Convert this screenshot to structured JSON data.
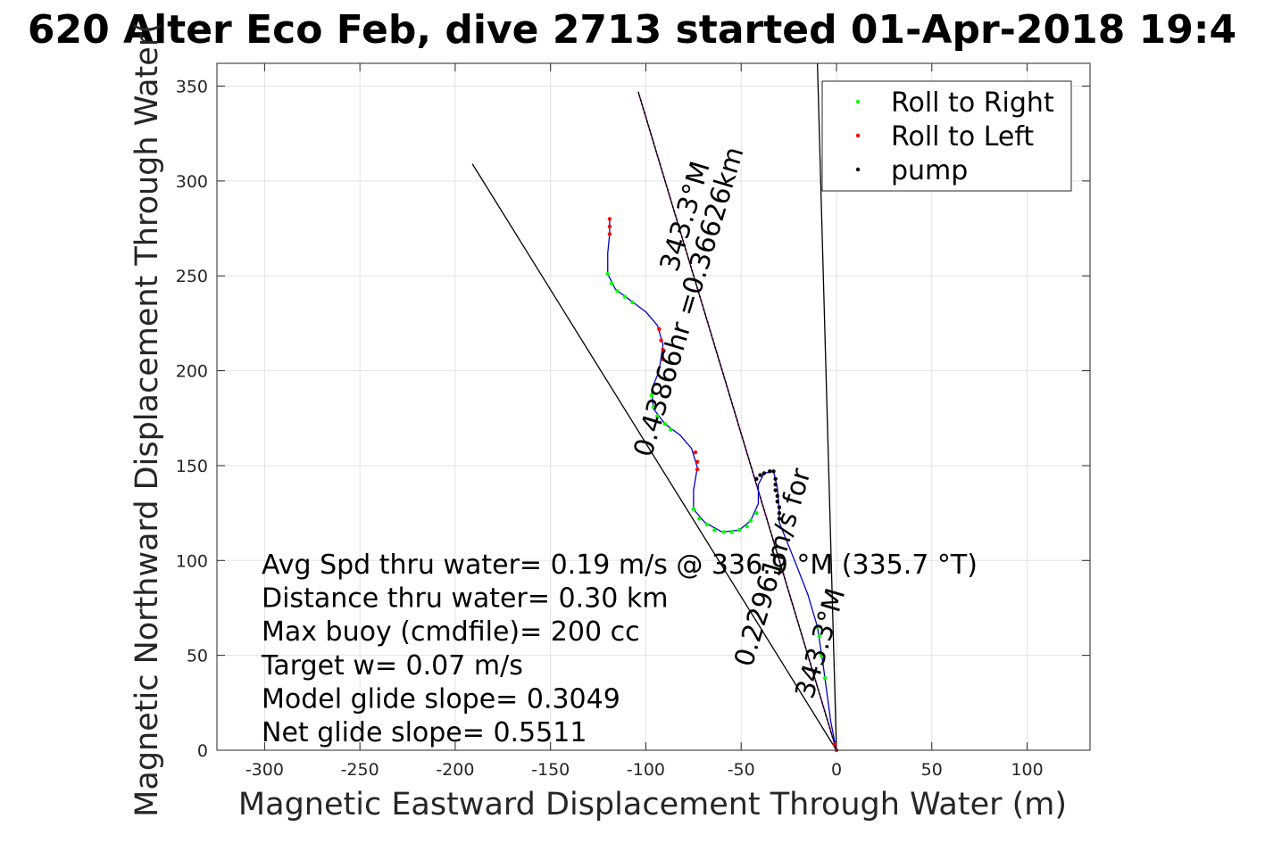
{
  "chart_data": {
    "type": "line",
    "title": "620 Alter Eco Feb, dive 2713 started 01-Apr-2018 19:4",
    "xlabel": "Magnetic Eastward Displacement Through Water (m)",
    "ylabel": "Magnetic Northward Displacement Through Water(",
    "xlim": [
      -325,
      133
    ],
    "ylim": [
      0,
      362
    ],
    "xticks": [
      -300,
      -250,
      -200,
      -150,
      -100,
      -50,
      0,
      50,
      100
    ],
    "yticks": [
      0,
      50,
      100,
      150,
      200,
      250,
      300,
      350
    ],
    "grid": true,
    "legend_position": "top-right",
    "legend": [
      {
        "label": "Roll to Right",
        "color": "#00ff00"
      },
      {
        "label": "Roll to Left",
        "color": "#ff0000"
      },
      {
        "label": "pump",
        "color": "#000000"
      }
    ],
    "series": [
      {
        "name": "Roll to Right",
        "color": "#00ff00",
        "points": [
          [
            -120,
            251
          ],
          [
            -118,
            246
          ],
          [
            -115,
            242
          ],
          [
            -111,
            239
          ],
          [
            -107,
            236
          ],
          [
            -97,
            187
          ],
          [
            -96,
            181
          ],
          [
            -94,
            176
          ],
          [
            -90,
            172
          ],
          [
            -87,
            169
          ],
          [
            -75,
            127
          ],
          [
            -72,
            122
          ],
          [
            -68,
            119
          ],
          [
            -64,
            116
          ],
          [
            -59,
            115
          ],
          [
            -55,
            115
          ],
          [
            -51,
            116
          ],
          [
            -47,
            118
          ],
          [
            -45,
            121
          ],
          [
            -42,
            125
          ],
          [
            -10,
            65
          ],
          [
            -9,
            60
          ],
          [
            -8,
            50
          ],
          [
            -6,
            38
          ]
        ]
      },
      {
        "name": "Roll to Left",
        "color": "#ff0000",
        "points": [
          [
            -119,
            280
          ],
          [
            -119,
            276
          ],
          [
            -119,
            272
          ],
          [
            -93,
            222
          ],
          [
            -92,
            216
          ],
          [
            -91,
            211
          ],
          [
            -91,
            206
          ],
          [
            -74,
            157
          ],
          [
            -73,
            152
          ],
          [
            -73,
            148
          ],
          [
            0,
            0
          ],
          [
            -1,
            3
          ]
        ]
      },
      {
        "name": "pump",
        "color": "#000000",
        "points": [
          [
            -33,
            147
          ],
          [
            -32,
            143
          ],
          [
            -32,
            140
          ],
          [
            -32,
            137
          ],
          [
            -31,
            134
          ],
          [
            -31,
            131
          ],
          [
            -30,
            128
          ],
          [
            -30,
            125
          ],
          [
            -30,
            122
          ],
          [
            -35,
            147
          ],
          [
            -38,
            146
          ],
          [
            -40,
            145
          ],
          [
            -42,
            143
          ]
        ]
      }
    ],
    "track": {
      "color": "#0000cc",
      "points": [
        [
          -119,
          280
        ],
        [
          -119,
          272
        ],
        [
          -120,
          262
        ],
        [
          -120,
          251
        ],
        [
          -116,
          243
        ],
        [
          -108,
          237
        ],
        [
          -100,
          231
        ],
        [
          -94,
          224
        ],
        [
          -91,
          214
        ],
        [
          -93,
          200
        ],
        [
          -97,
          190
        ],
        [
          -96,
          180
        ],
        [
          -90,
          172
        ],
        [
          -82,
          166
        ],
        [
          -76,
          159
        ],
        [
          -73,
          149
        ],
        [
          -75,
          137
        ],
        [
          -75,
          127
        ],
        [
          -69,
          120
        ],
        [
          -60,
          115
        ],
        [
          -51,
          116
        ],
        [
          -45,
          121
        ],
        [
          -41,
          130
        ],
        [
          -41,
          140
        ],
        [
          -38,
          146
        ],
        [
          -33,
          147
        ],
        [
          -31,
          138
        ],
        [
          -30,
          126
        ],
        [
          -30,
          120
        ],
        [
          -22,
          100
        ],
        [
          -15,
          82
        ],
        [
          -10,
          65
        ],
        [
          -7,
          45
        ],
        [
          -5,
          30
        ],
        [
          -3,
          15
        ],
        [
          0,
          0
        ]
      ]
    },
    "reference_lines": [
      {
        "color": "#ff00ff",
        "from": [
          0,
          0
        ],
        "to": [
          -104,
          347
        ],
        "dash": true
      },
      {
        "color": "#000000",
        "from": [
          0,
          0
        ],
        "to": [
          -104,
          347
        ]
      },
      {
        "color": "#000000",
        "from": [
          0,
          0
        ],
        "to": [
          -191,
          309
        ]
      },
      {
        "color": "#000000",
        "from": [
          0,
          0
        ],
        "to": [
          -10,
          362
        ]
      }
    ],
    "rotated_annotations": [
      {
        "text": "0.43866hr =0.36626km",
        "x": -73,
        "y": 235,
        "angle": -73.3
      },
      {
        "text": "343.3°M",
        "x": -75,
        "y": 280,
        "angle": -73.3
      },
      {
        "text": "0.22961m/s for",
        "x": -29,
        "y": 95,
        "angle": -73.3
      },
      {
        "text": "343.3°M",
        "x": -4,
        "y": 55,
        "angle": -73.3
      }
    ],
    "annotations": [
      "Avg Spd thru water=  0.19 m/s @ 336.9 °M (335.7 °T)",
      "Distance thru water=  0.30 km",
      "Max buoy (cmdfile)= 200 cc",
      "Target w= 0.07 m/s",
      "Model glide slope= 0.3049",
      "Net glide slope= 0.5511"
    ]
  }
}
